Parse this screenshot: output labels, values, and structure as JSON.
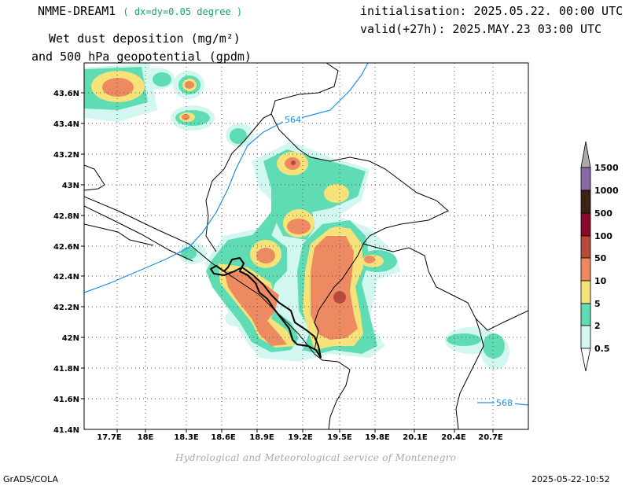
{
  "header": {
    "model": "NMME-DREAM1",
    "resolution": "( dx=dy=0.05 degree )",
    "variable_line1": "Wet dust deposition (mg/m²)",
    "variable_line2": "and 500 hPa geopotential (gpdm)",
    "initialisation": "initialisation: 2025.05.22. 00:00 UTC",
    "valid": "valid(+27h): 2025.MAY.23 03:00 UTC"
  },
  "map": {
    "lat_ticks": [
      "43.6N",
      "43.4N",
      "43.2N",
      "43N",
      "42.8N",
      "42.6N",
      "42.4N",
      "42.2N",
      "42N",
      "41.8N",
      "41.6N",
      "41.4N"
    ],
    "lon_ticks": [
      "17.7E",
      "18E",
      "18.3E",
      "18.6E",
      "18.9E",
      "19.2E",
      "19.5E",
      "19.8E",
      "20.1E",
      "20.4E",
      "20.7E"
    ],
    "contour_labels": [
      "564",
      "568"
    ],
    "contour_color": "#1e8fe6",
    "grid": true
  },
  "colorbar": {
    "levels": [
      "0.5",
      "2",
      "5",
      "10",
      "50",
      "100",
      "500",
      "1000",
      "1500"
    ],
    "colors": [
      "#d2f6f0",
      "#5fdcb4",
      "#f5e278",
      "#ee8a62",
      "#b84a3c",
      "#8a0a2c",
      "#3c2414",
      "#8a6aa6",
      "#aaaaaa"
    ]
  },
  "credit": "Hydrological and Meteorological service of Montenegro",
  "footer": {
    "left": "GrADS/COLA",
    "right": "2025-05-22-10:52"
  }
}
